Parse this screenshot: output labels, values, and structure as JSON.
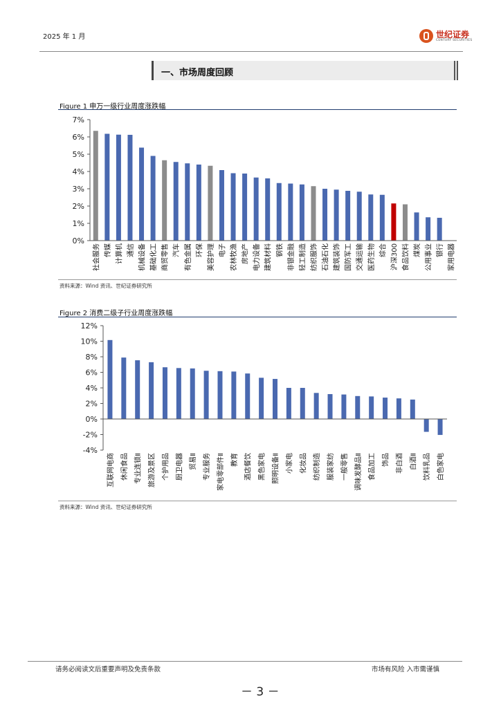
{
  "header": {
    "date": "2025 年 1 月",
    "brand": "世纪证券",
    "brand_en": "CENTURY SECURITIES"
  },
  "section": {
    "title": "一、市场周度回顾"
  },
  "figures": [
    {
      "label": "Figure 1",
      "caption": "申万一级行业周度涨跌幅",
      "source": "资料来源：Wind 资讯、世纪证券研究所"
    },
    {
      "label": "Figure 2",
      "caption": "消费二级子行业周度涨跌幅",
      "source": "资料来源：Wind 资讯、世纪证券研究所"
    }
  ],
  "footer": {
    "disclaimer": "请务必阅读文后重要声明及免责条款",
    "risk": "市场有风险  入市需谨慎",
    "page": "－ 3 －"
  },
  "colors": {
    "bar": "#4a69b0",
    "gray": "#8c8c8c",
    "red": "#c00000"
  },
  "chart_data": [
    {
      "type": "bar",
      "title": "申万一级行业周度涨跌幅",
      "yticks": [
        "7%",
        "6%",
        "5%",
        "4%",
        "3%",
        "2%",
        "1%",
        "0%"
      ],
      "ylim": [
        0,
        7
      ],
      "categories": [
        "社会服务",
        "传媒",
        "计算机",
        "通信",
        "机械设备",
        "基础化工",
        "商贸零售",
        "汽车",
        "有色金属",
        "环保",
        "美容护理",
        "电子",
        "农林牧渔",
        "房地产",
        "电力设备",
        "建筑材料",
        "钢铁",
        "非银金融",
        "轻工制造",
        "纺织服饰",
        "石油石化",
        "建筑装饰",
        "国防军工",
        "交通运输",
        "医药生物",
        "综合",
        "沪深300",
        "食品饮料",
        "煤炭",
        "公用事业",
        "银行",
        "家用电器"
      ],
      "values": [
        6.35,
        6.18,
        6.13,
        6.12,
        5.38,
        4.9,
        4.65,
        4.55,
        4.47,
        4.4,
        4.33,
        4.08,
        3.9,
        3.88,
        3.65,
        3.6,
        3.33,
        3.3,
        3.25,
        3.15,
        3.0,
        2.95,
        2.88,
        2.83,
        2.67,
        2.65,
        2.15,
        2.1,
        1.63,
        1.35,
        1.32,
        0.02
      ],
      "bar_colors": [
        "gray",
        "bar",
        "bar",
        "bar",
        "bar",
        "bar",
        "gray",
        "bar",
        "bar",
        "bar",
        "gray",
        "bar",
        "bar",
        "bar",
        "bar",
        "bar",
        "bar",
        "bar",
        "bar",
        "gray",
        "bar",
        "bar",
        "bar",
        "bar",
        "bar",
        "bar",
        "red",
        "gray",
        "bar",
        "bar",
        "bar",
        "gray"
      ]
    },
    {
      "type": "bar",
      "title": "消费二级子行业周度涨跌幅",
      "yticks": [
        "12%",
        "10%",
        "8%",
        "6%",
        "4%",
        "2%",
        "0%",
        "-2%",
        "-4%"
      ],
      "ylim": [
        -4,
        12
      ],
      "categories": [
        "互联网电商",
        "休闲食品",
        "专业连锁Ⅱ",
        "旅游及景区",
        "个护用品",
        "厨卫电器",
        "贸易Ⅱ",
        "专业服务",
        "家电零部件Ⅱ",
        "教育",
        "酒店餐饮",
        "黑色家电",
        "照明设备Ⅱ",
        "小家电",
        "化妆品",
        "纺织制造",
        "服装家纺",
        "一般零售",
        "调味发酵品Ⅱ",
        "食品加工",
        "饰品",
        "非白酒",
        "白酒Ⅱ",
        "饮料乳品",
        "白色家电"
      ],
      "values": [
        10.15,
        7.9,
        7.55,
        7.3,
        6.65,
        6.55,
        6.5,
        6.2,
        6.15,
        6.1,
        5.85,
        5.3,
        5.15,
        4.0,
        4.0,
        3.35,
        3.2,
        3.15,
        2.95,
        2.9,
        2.75,
        2.65,
        2.5,
        -1.65,
        -2.05
      ],
      "bar_colors": []
    }
  ]
}
